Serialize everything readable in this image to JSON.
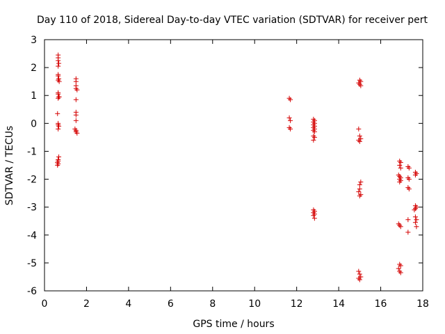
{
  "chart_data": {
    "type": "scatter",
    "title": "Day 110 of 2018, Sidereal Day-to-day VTEC variation (SDTVAR) for receiver pert",
    "xlabel": "GPS time / hours",
    "ylabel": "SDTVAR / TECUs",
    "xlim": [
      0,
      18
    ],
    "ylim": [
      -6,
      3
    ],
    "x_ticks": [
      0,
      2,
      4,
      6,
      8,
      10,
      12,
      14,
      16,
      18
    ],
    "y_ticks": [
      -6,
      -5,
      -4,
      -3,
      -2,
      -1,
      0,
      1,
      2,
      3
    ],
    "marker": "+",
    "color": "#d40000",
    "series": [
      {
        "name": "SDTVAR",
        "points": [
          [
            0.65,
            2.45
          ],
          [
            0.65,
            2.35
          ],
          [
            0.65,
            2.25
          ],
          [
            0.68,
            2.15
          ],
          [
            0.65,
            2.05
          ],
          [
            0.65,
            1.75
          ],
          [
            0.65,
            1.7
          ],
          [
            0.68,
            1.6
          ],
          [
            0.65,
            1.55
          ],
          [
            0.7,
            1.5
          ],
          [
            0.65,
            1.1
          ],
          [
            0.65,
            1.05
          ],
          [
            0.68,
            0.95
          ],
          [
            0.65,
            0.9
          ],
          [
            0.7,
            0.95
          ],
          [
            0.62,
            0.35
          ],
          [
            0.65,
            0.0
          ],
          [
            0.65,
            -0.05
          ],
          [
            0.68,
            -0.1
          ],
          [
            0.65,
            -0.2
          ],
          [
            0.68,
            -1.2
          ],
          [
            0.65,
            -1.3
          ],
          [
            0.65,
            -1.35
          ],
          [
            0.62,
            -1.4
          ],
          [
            0.65,
            -1.45
          ],
          [
            0.62,
            -1.5
          ],
          [
            1.5,
            1.6
          ],
          [
            1.5,
            1.5
          ],
          [
            1.5,
            1.35
          ],
          [
            1.5,
            1.25
          ],
          [
            1.55,
            1.2
          ],
          [
            1.5,
            0.85
          ],
          [
            1.5,
            0.4
          ],
          [
            1.5,
            0.3
          ],
          [
            1.5,
            0.1
          ],
          [
            1.45,
            -0.2
          ],
          [
            1.5,
            -0.25
          ],
          [
            1.5,
            -0.3
          ],
          [
            1.55,
            -0.35
          ],
          [
            11.65,
            0.9
          ],
          [
            11.7,
            0.85
          ],
          [
            11.65,
            0.2
          ],
          [
            11.7,
            0.1
          ],
          [
            11.65,
            -0.15
          ],
          [
            11.7,
            -0.2
          ],
          [
            12.8,
            0.15
          ],
          [
            12.85,
            0.1
          ],
          [
            12.8,
            0.05
          ],
          [
            12.85,
            0.0
          ],
          [
            12.8,
            -0.05
          ],
          [
            12.85,
            -0.1
          ],
          [
            12.8,
            -0.15
          ],
          [
            12.85,
            -0.2
          ],
          [
            12.8,
            -0.25
          ],
          [
            12.85,
            -0.3
          ],
          [
            12.8,
            -0.45
          ],
          [
            12.85,
            -0.5
          ],
          [
            12.8,
            -0.6
          ],
          [
            12.8,
            -3.1
          ],
          [
            12.85,
            -3.15
          ],
          [
            12.8,
            -3.2
          ],
          [
            12.85,
            -3.25
          ],
          [
            12.8,
            -3.3
          ],
          [
            12.85,
            -3.4
          ],
          [
            15.0,
            1.55
          ],
          [
            15.05,
            1.5
          ],
          [
            14.95,
            1.45
          ],
          [
            15.0,
            1.4
          ],
          [
            15.05,
            1.35
          ],
          [
            14.95,
            -0.2
          ],
          [
            15.0,
            -0.45
          ],
          [
            15.05,
            -0.55
          ],
          [
            14.95,
            -0.6
          ],
          [
            15.0,
            -0.65
          ],
          [
            15.05,
            -2.1
          ],
          [
            15.0,
            -2.2
          ],
          [
            15.0,
            -2.35
          ],
          [
            14.95,
            -2.45
          ],
          [
            15.05,
            -2.55
          ],
          [
            15.0,
            -2.6
          ],
          [
            14.95,
            -5.3
          ],
          [
            15.0,
            -5.4
          ],
          [
            15.05,
            -5.5
          ],
          [
            14.95,
            -5.55
          ],
          [
            15.0,
            -5.6
          ],
          [
            16.9,
            -1.35
          ],
          [
            16.95,
            -1.4
          ],
          [
            16.9,
            -1.5
          ],
          [
            16.95,
            -1.6
          ],
          [
            16.85,
            -1.85
          ],
          [
            16.9,
            -1.9
          ],
          [
            16.95,
            -1.95
          ],
          [
            16.9,
            -2.0
          ],
          [
            16.95,
            -2.05
          ],
          [
            16.9,
            -2.1
          ],
          [
            16.85,
            -3.6
          ],
          [
            16.9,
            -3.65
          ],
          [
            16.95,
            -3.7
          ],
          [
            16.9,
            -5.05
          ],
          [
            16.95,
            -5.1
          ],
          [
            16.85,
            -5.2
          ],
          [
            16.9,
            -5.3
          ],
          [
            16.95,
            -5.35
          ],
          [
            17.3,
            -1.55
          ],
          [
            17.35,
            -1.6
          ],
          [
            17.3,
            -1.95
          ],
          [
            17.35,
            -2.0
          ],
          [
            17.3,
            -2.3
          ],
          [
            17.35,
            -2.35
          ],
          [
            17.3,
            -3.45
          ],
          [
            17.3,
            -3.9
          ],
          [
            17.65,
            -1.75
          ],
          [
            17.7,
            -1.8
          ],
          [
            17.65,
            -1.85
          ],
          [
            17.65,
            -2.95
          ],
          [
            17.7,
            -3.0
          ],
          [
            17.65,
            -3.05
          ],
          [
            17.6,
            -3.1
          ],
          [
            17.65,
            -3.35
          ],
          [
            17.7,
            -3.45
          ],
          [
            17.65,
            -3.55
          ],
          [
            17.7,
            -3.7
          ]
        ]
      }
    ]
  }
}
